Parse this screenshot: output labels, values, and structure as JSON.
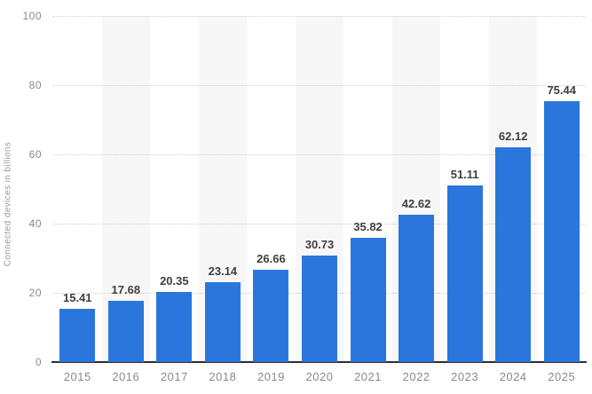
{
  "chart_data": {
    "type": "bar",
    "title": "",
    "xlabel": "",
    "ylabel": "Connected devices in billions",
    "categories": [
      "2015",
      "2016",
      "2017",
      "2018",
      "2019",
      "2020",
      "2021",
      "2022",
      "2023",
      "2024",
      "2025"
    ],
    "values": [
      15.41,
      17.68,
      20.35,
      23.14,
      26.66,
      30.73,
      35.82,
      42.62,
      51.11,
      62.12,
      75.44
    ],
    "value_labels": [
      "15.41",
      "17.68",
      "20.35",
      "23.14",
      "26.66",
      "30.73",
      "35.82",
      "42.62",
      "51.11",
      "62.12",
      "75.44"
    ],
    "ylim": [
      0,
      100
    ],
    "yticks": [
      0,
      20,
      40,
      60,
      80,
      100
    ],
    "grid": "horizontal-dotted",
    "legend": "none",
    "striped_columns": "alternating, even years shaded",
    "colors": {
      "bar": "#2b76dc",
      "stripe": "#f7f7f7",
      "gridline": "#cfcfcf",
      "axis_line": "#2f2f2f",
      "tick_label": "#8a8a8a",
      "value_label": "#3f3f3f",
      "y_title": "#9a9a9a",
      "background": "#ffffff"
    }
  }
}
